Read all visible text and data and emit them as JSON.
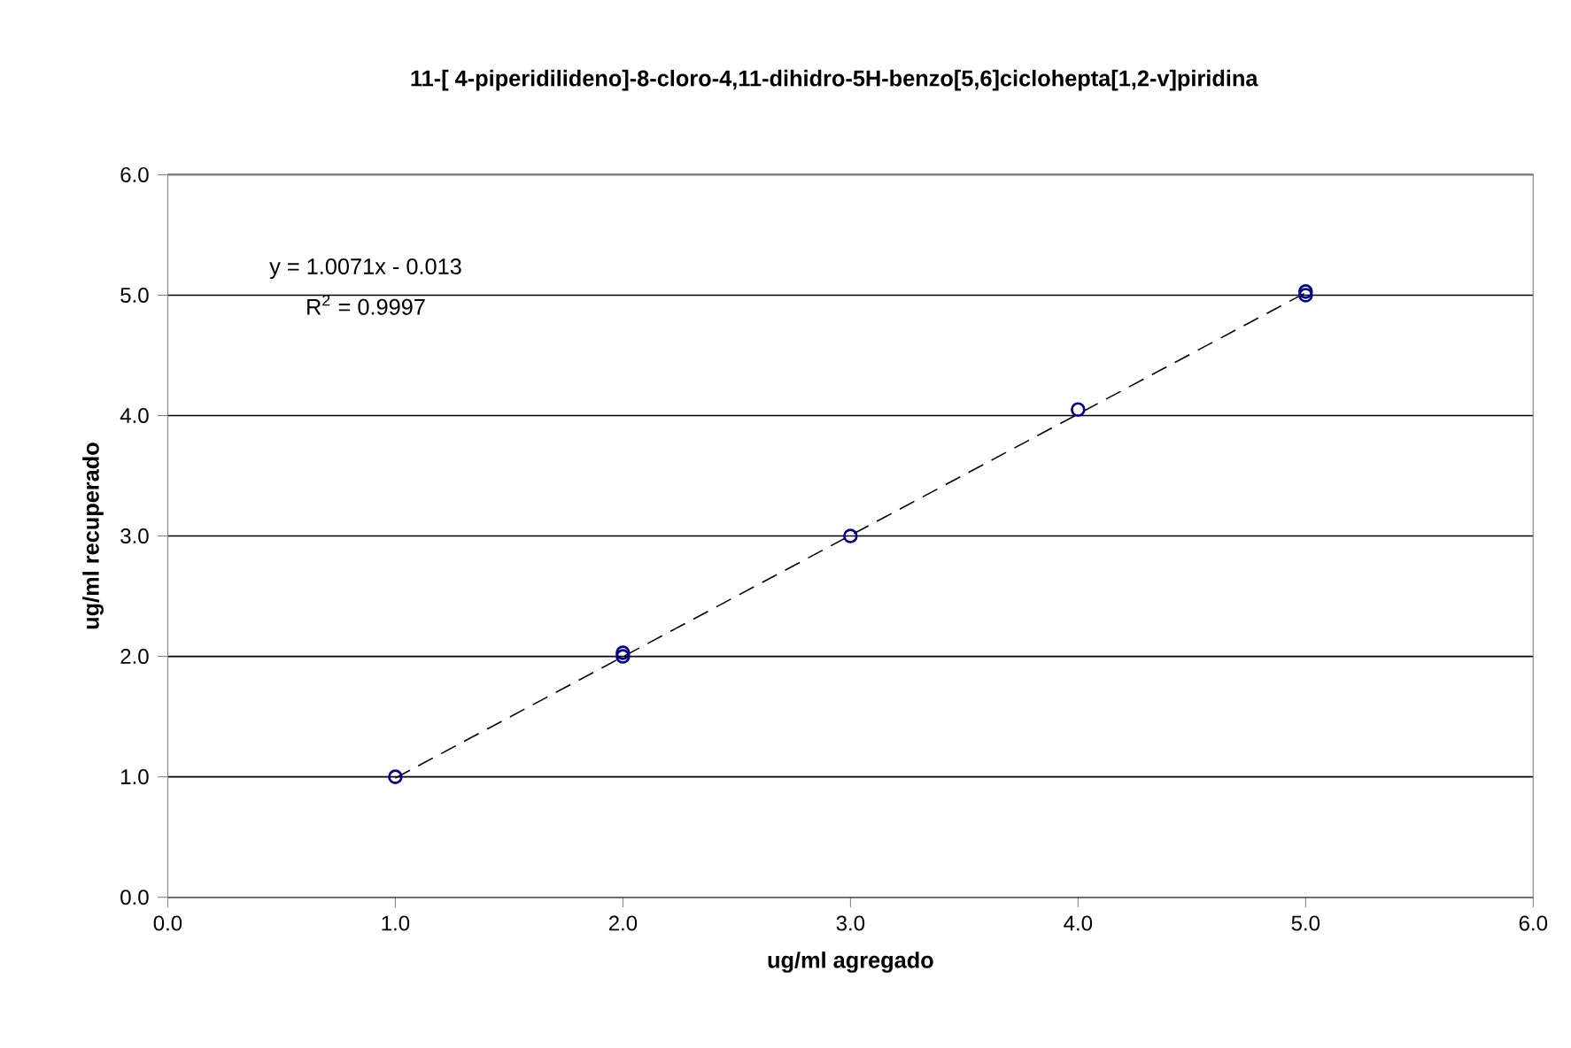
{
  "chart_data": {
    "type": "scatter",
    "title": "11-[ 4-piperidilideno]-8-cloro-4,11-dihidro-5H-benzo[5,6]ciclohepta[1,2-v]piridina",
    "xlabel": "ug/ml agregado",
    "ylabel": "ug/ml recuperado",
    "series": [
      {
        "color": "#000080",
        "marker": "circle",
        "x": [
          1,
          2,
          2,
          3,
          4,
          5,
          5
        ],
        "values": [
          1.0,
          2.0,
          2.03,
          3.0,
          4.05,
          5.0,
          5.03
        ]
      },
      {
        "type": "line",
        "color": "#000000",
        "line_style": "dashed",
        "marker": "none",
        "x": [
          1,
          5
        ],
        "values": [
          0.99,
          5.02
        ]
      }
    ],
    "annotations": [
      "y = 1.0071x - 0.013",
      "R$^{2}$ = 0.9997"
    ],
    "xlim": [
      0,
      6
    ],
    "ylim": [
      0,
      6
    ],
    "xticks": [
      {
        "value": 0,
        "label": "0.0"
      },
      {
        "value": 1,
        "label": "1.0"
      },
      {
        "value": 2,
        "label": "2.0"
      },
      {
        "value": 3,
        "label": "3.0"
      },
      {
        "value": 4,
        "label": "4.0"
      },
      {
        "value": 5,
        "label": "5.0"
      },
      {
        "value": 6,
        "label": "6.0"
      }
    ],
    "yticks": [
      {
        "value": 0,
        "label": "0.0"
      },
      {
        "value": 1,
        "label": "1.0"
      },
      {
        "value": 2,
        "label": "2.0"
      },
      {
        "value": 3,
        "label": "3.0"
      },
      {
        "value": 4,
        "label": "4.0"
      },
      {
        "value": 5,
        "label": "5.0"
      },
      {
        "value": 6,
        "label": "6.0"
      }
    ],
    "grid": "y"
  }
}
